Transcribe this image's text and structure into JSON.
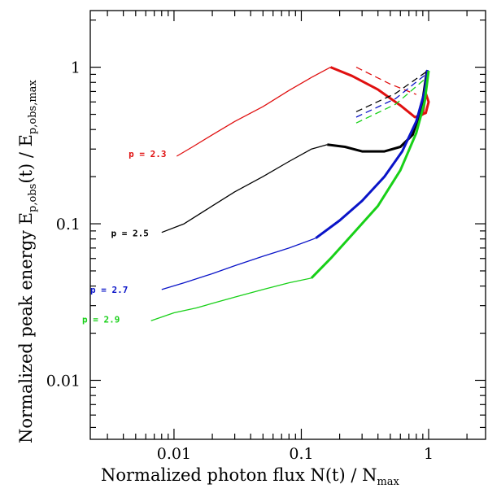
{
  "chart_data": {
    "type": "line",
    "title": "",
    "xlabel": {
      "main": "Normalized photon flux N(t) / N",
      "sub": "max"
    },
    "ylabel": {
      "part1": "Normalized peak energy E",
      "sub1": "p,obs",
      "part2": "(t) / E",
      "sub2": "p,obs,max"
    },
    "x_scale": "log",
    "y_scale": "log",
    "xlim": [
      0.0022,
      2.8
    ],
    "ylim": [
      0.0042,
      2.3
    ],
    "x_ticks": [
      {
        "value": 0.01,
        "label": "0.01"
      },
      {
        "value": 0.1,
        "label": "0.1"
      },
      {
        "value": 1,
        "label": "1"
      }
    ],
    "y_ticks": [
      {
        "value": 0.01,
        "label": "0.01"
      },
      {
        "value": 0.1,
        "label": "0.1"
      },
      {
        "value": 1,
        "label": "1"
      }
    ],
    "series": [
      {
        "name": "p = 2.3",
        "color": "#e01010",
        "label_at": [
          0.0044,
          0.28
        ],
        "x": [
          0.0105,
          0.014,
          0.02,
          0.03,
          0.05,
          0.08,
          0.12,
          0.17,
          0.25,
          0.4,
          0.6,
          0.78,
          0.95,
          1.0,
          0.95,
          0.9,
          0.8
        ],
        "y": [
          0.27,
          0.31,
          0.37,
          0.45,
          0.56,
          0.71,
          0.86,
          1.0,
          0.88,
          0.72,
          0.57,
          0.48,
          0.51,
          0.6,
          0.68,
          0.5,
          0.47
        ],
        "thick_from": 7,
        "dashed": {
          "x": [
            0.27,
            0.5,
            0.8
          ],
          "y": [
            1.0,
            0.78,
            0.67
          ]
        }
      },
      {
        "name": "p = 2.5",
        "color": "#000000",
        "label_at": [
          0.0032,
          0.087
        ],
        "x": [
          0.008,
          0.012,
          0.02,
          0.03,
          0.05,
          0.08,
          0.12,
          0.16,
          0.22,
          0.3,
          0.45,
          0.6,
          0.75,
          0.88,
          0.97
        ],
        "y": [
          0.088,
          0.1,
          0.13,
          0.16,
          0.2,
          0.25,
          0.3,
          0.32,
          0.31,
          0.29,
          0.29,
          0.31,
          0.37,
          0.55,
          0.95
        ],
        "thick_from": 7,
        "dashed": {
          "x": [
            0.27,
            0.55,
            0.95
          ],
          "y": [
            0.52,
            0.68,
            0.93
          ]
        }
      },
      {
        "name": "p = 2.7",
        "color": "#0a14c8",
        "label_at": [
          0.0022,
          0.038
        ],
        "x": [
          0.008,
          0.012,
          0.02,
          0.03,
          0.05,
          0.08,
          0.13,
          0.2,
          0.3,
          0.45,
          0.62,
          0.8,
          0.93,
          0.98
        ],
        "y": [
          0.038,
          0.042,
          0.048,
          0.054,
          0.062,
          0.07,
          0.081,
          0.105,
          0.14,
          0.2,
          0.29,
          0.45,
          0.7,
          0.96
        ],
        "thick_from": 6,
        "dashed": {
          "x": [
            0.27,
            0.55,
            0.95
          ],
          "y": [
            0.48,
            0.63,
            0.9
          ]
        }
      },
      {
        "name": "p = 2.9",
        "color": "#18d018",
        "label_at": [
          0.0019,
          0.0245
        ],
        "x": [
          0.0066,
          0.01,
          0.015,
          0.02,
          0.03,
          0.05,
          0.08,
          0.12,
          0.17,
          0.25,
          0.4,
          0.6,
          0.8,
          0.93,
          1.0
        ],
        "y": [
          0.024,
          0.027,
          0.029,
          0.031,
          0.034,
          0.038,
          0.042,
          0.045,
          0.06,
          0.085,
          0.13,
          0.22,
          0.38,
          0.6,
          0.95
        ],
        "thick_from": 7,
        "dashed": {
          "x": [
            0.27,
            0.55,
            0.95
          ],
          "y": [
            0.44,
            0.58,
            0.85
          ]
        }
      }
    ]
  }
}
